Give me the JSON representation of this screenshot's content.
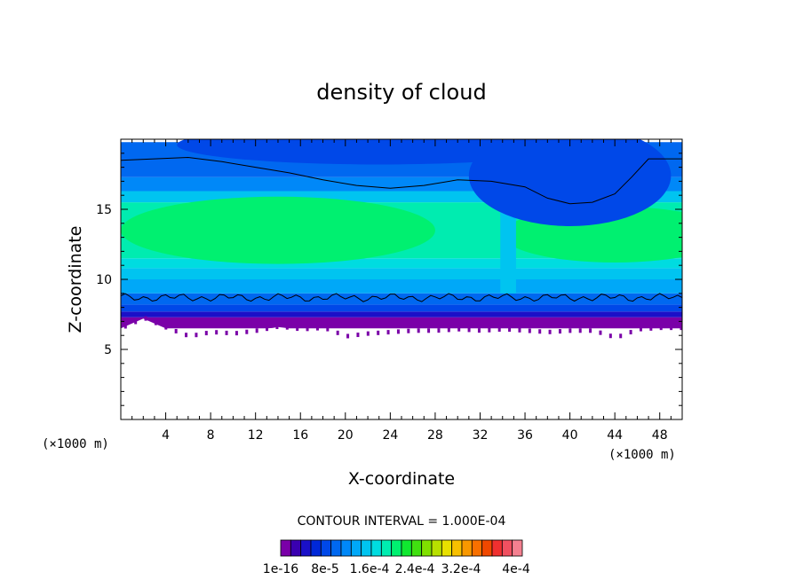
{
  "chart_data": {
    "type": "heatmap",
    "title": "density of cloud",
    "xlabel": "X-coordinate",
    "ylabel": "Z-coordinate",
    "x_unit": "(×1000 m)",
    "xlim": [
      0,
      50
    ],
    "ylim": [
      0,
      20
    ],
    "x_ticks": [
      4,
      8,
      12,
      16,
      20,
      24,
      28,
      32,
      36,
      40,
      44,
      48
    ],
    "y_ticks": [
      5,
      10,
      15
    ],
    "contour_interval_label": "CONTOUR INTERVAL = 1.000E-04",
    "colorbar_labels": [
      "1e-16",
      "8e-5",
      "1.6e-4",
      "2.4e-4",
      "3.2e-4",
      "4e-4"
    ],
    "colorbar_colors": [
      "#7a00a8",
      "#3a00b0",
      "#1a10c8",
      "#0028d8",
      "#0048e8",
      "#0068f0",
      "#0088f8",
      "#00a8f8",
      "#00c4f0",
      "#00dce0",
      "#00ecb0",
      "#00f070",
      "#10e830",
      "#40e010",
      "#80e000",
      "#b8e000",
      "#e8e000",
      "#f8c000",
      "#f89800",
      "#f87000",
      "#f04800",
      "#f03030",
      "#f05060",
      "#f48090"
    ],
    "contour_level_3": [
      [
        0,
        18.5
      ],
      [
        3,
        18.6
      ],
      [
        6,
        18.7
      ],
      [
        9,
        18.4
      ],
      [
        12,
        18.0
      ],
      [
        15,
        17.6
      ],
      [
        18,
        17.1
      ],
      [
        21,
        16.7
      ],
      [
        24,
        16.5
      ],
      [
        27,
        16.7
      ],
      [
        30,
        17.1
      ],
      [
        33,
        17.0
      ],
      [
        36,
        16.6
      ],
      [
        38,
        15.8
      ],
      [
        40,
        15.4
      ],
      [
        42,
        15.5
      ],
      [
        44,
        16.1
      ],
      [
        45.5,
        17.3
      ],
      [
        47,
        18.6
      ],
      [
        50,
        18.6
      ]
    ],
    "cloud_base_z": [
      [
        0,
        6.5
      ],
      [
        2,
        7.2
      ],
      [
        4,
        6.5
      ],
      [
        6,
        5.9
      ],
      [
        8,
        6.2
      ],
      [
        10,
        6.1
      ],
      [
        12,
        6.3
      ],
      [
        14,
        6.6
      ],
      [
        16,
        6.4
      ],
      [
        18,
        6.5
      ],
      [
        20,
        5.9
      ],
      [
        22,
        6.1
      ],
      [
        24,
        6.2
      ],
      [
        26,
        6.3
      ],
      [
        28,
        6.3
      ],
      [
        30,
        6.4
      ],
      [
        32,
        6.3
      ],
      [
        34,
        6.4
      ],
      [
        36,
        6.3
      ],
      [
        38,
        6.2
      ],
      [
        40,
        6.3
      ],
      [
        42,
        6.3
      ],
      [
        44,
        5.8
      ],
      [
        46,
        6.4
      ],
      [
        48,
        6.5
      ],
      [
        50,
        6.5
      ]
    ],
    "cloud_top_z": 19.8,
    "color_bands": [
      {
        "z0": 6.5,
        "z1": 7.3,
        "color": "#7a00a8"
      },
      {
        "z0": 7.3,
        "z1": 7.7,
        "color": "#1a10c8"
      },
      {
        "z0": 7.7,
        "z1": 8.2,
        "color": "#0048e8"
      },
      {
        "z0": 8.2,
        "z1": 9.0,
        "color": "#0068f0"
      },
      {
        "z0": 9.0,
        "z1": 10.0,
        "color": "#00a8f8"
      },
      {
        "z0": 10.0,
        "z1": 10.8,
        "color": "#00c4f0"
      },
      {
        "z0": 10.8,
        "z1": 11.5,
        "color": "#00dce0"
      },
      {
        "z0": 11.5,
        "z1": 15.5,
        "color": "#00ecb0"
      },
      {
        "z0": 15.5,
        "z1": 16.3,
        "color": "#00c4f0"
      },
      {
        "z0": 16.3,
        "z1": 17.3,
        "color": "#0088f8"
      },
      {
        "z0": 17.3,
        "z1": 19.8,
        "color": "#0068f0"
      }
    ],
    "green_core_color": "#00f070",
    "upper_dark_color": "#0048e8"
  }
}
